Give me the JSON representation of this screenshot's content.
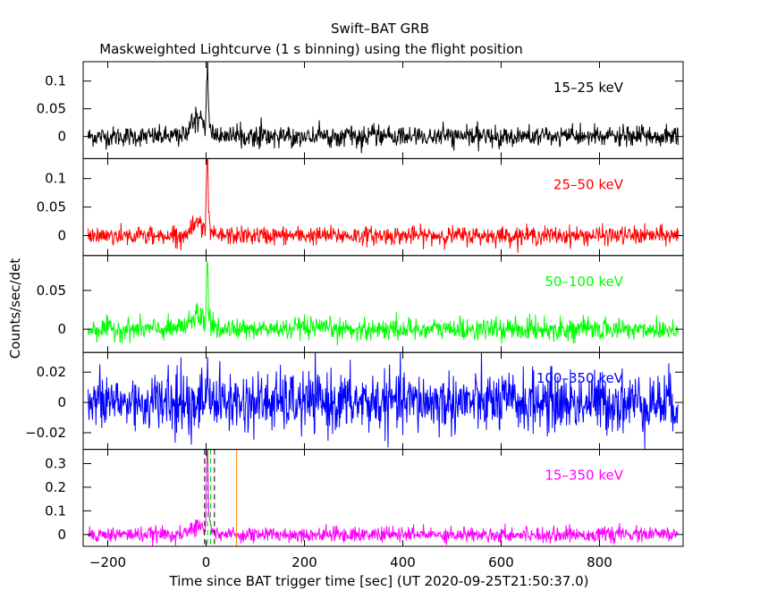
{
  "title_line1": "Swift–BAT GRB",
  "title_line2": "Maskweighted Lightcurve (1 s binning) using the flight position",
  "xlabel": "Time since BAT trigger time [sec] (UT 2020-09-25T21:50:37.0)",
  "ylabel": "Counts/sec/det",
  "chart_data": {
    "type": "line",
    "x_range": [
      -250,
      970
    ],
    "x_ticks": [
      -200,
      0,
      200,
      400,
      600,
      800
    ],
    "x_tick_labels": [
      "−200",
      "0",
      "200",
      "400",
      "600",
      "800"
    ],
    "binning_s": 1,
    "panels": [
      {
        "label": "15–25 keV",
        "color": "#000000",
        "ylim": [
          -0.04,
          0.135
        ],
        "y_ticks": [
          0,
          0.05,
          0.1
        ],
        "y_tick_labels": [
          "0",
          "0.05",
          "0.1"
        ],
        "noise": 0.009,
        "peak": 0.12,
        "peak_t": 2,
        "precursor": 0.04
      },
      {
        "label": "25–50 keV",
        "color": "#ff0000",
        "ylim": [
          -0.035,
          0.135
        ],
        "y_ticks": [
          0,
          0.05,
          0.1
        ],
        "y_tick_labels": [
          "0",
          "0.05",
          "0.1"
        ],
        "noise": 0.008,
        "peak": 0.13,
        "peak_t": 2,
        "precursor": 0.03
      },
      {
        "label": "50–100 keV",
        "color": "#00ff00",
        "ylim": [
          -0.03,
          0.095
        ],
        "y_ticks": [
          0,
          0.05
        ],
        "y_tick_labels": [
          "0",
          "0.05"
        ],
        "noise": 0.007,
        "peak": 0.085,
        "peak_t": 2,
        "precursor": 0.02
      },
      {
        "label": "100–350 keV",
        "color": "#0000ff",
        "ylim": [
          -0.031,
          0.033
        ],
        "y_ticks": [
          -0.02,
          0,
          0.02
        ],
        "y_tick_labels": [
          "−0.02",
          "0",
          "0.02"
        ],
        "noise": 0.01,
        "peak": 0.02,
        "peak_t": 2,
        "precursor": 0.0
      },
      {
        "label": "15–350 keV",
        "color": "#ff00ff",
        "ylim": [
          -0.05,
          0.36
        ],
        "y_ticks": [
          0,
          0.1,
          0.2,
          0.3
        ],
        "y_tick_labels": [
          "0",
          "0.1",
          "0.2",
          "0.3"
        ],
        "noise": 0.016,
        "peak": 0.34,
        "peak_t": 2,
        "precursor": 0.05,
        "markers": [
          {
            "t": -3,
            "color": "#000000",
            "style": "dashed"
          },
          {
            "t": 17,
            "color": "#000000",
            "style": "dashed"
          },
          {
            "t": 3,
            "color": "#00cc00",
            "style": "dashed"
          },
          {
            "t": 9,
            "color": "#00cc00",
            "style": "dashed"
          },
          {
            "t": 62,
            "color": "#ff8000",
            "style": "solid"
          }
        ]
      }
    ]
  }
}
